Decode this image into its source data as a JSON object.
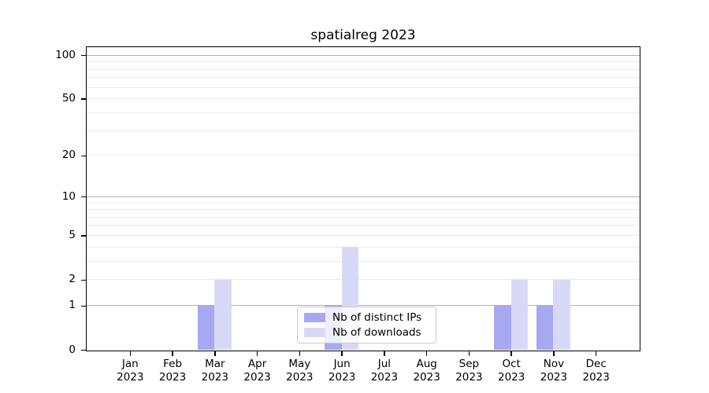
{
  "chart_data": {
    "type": "bar",
    "title": "spatialreg 2023",
    "categories": [
      {
        "month": "Jan",
        "year": "2023"
      },
      {
        "month": "Feb",
        "year": "2023"
      },
      {
        "month": "Mar",
        "year": "2023"
      },
      {
        "month": "Apr",
        "year": "2023"
      },
      {
        "month": "May",
        "year": "2023"
      },
      {
        "month": "Jun",
        "year": "2023"
      },
      {
        "month": "Jul",
        "year": "2023"
      },
      {
        "month": "Aug",
        "year": "2023"
      },
      {
        "month": "Sep",
        "year": "2023"
      },
      {
        "month": "Oct",
        "year": "2023"
      },
      {
        "month": "Nov",
        "year": "2023"
      },
      {
        "month": "Dec",
        "year": "2023"
      }
    ],
    "series": [
      {
        "name": "Nb of distinct IPs",
        "color": "#a8a8f2",
        "values": [
          0,
          0,
          1,
          0,
          0,
          1,
          0,
          0,
          0,
          1,
          1,
          0
        ]
      },
      {
        "name": "Nb of downloads",
        "color": "#d9d9f7",
        "values": [
          0,
          0,
          2,
          0,
          0,
          4,
          0,
          0,
          0,
          2,
          2,
          0
        ]
      }
    ],
    "yscale": "log1p",
    "ylim": [
      0,
      100
    ],
    "ytick_values": [
      0,
      1,
      2,
      5,
      10,
      20,
      50,
      100
    ],
    "grid_major_values": [
      1,
      10,
      100
    ],
    "grid_minor_values": [
      2,
      3,
      4,
      5,
      6,
      7,
      8,
      9,
      20,
      30,
      40,
      50,
      60,
      70,
      80,
      90
    ],
    "grid_major_color": "#b2b2b2",
    "grid_minor_color": "#e9e9e9",
    "legend_position": "lower center",
    "xlabel": "",
    "ylabel": ""
  }
}
